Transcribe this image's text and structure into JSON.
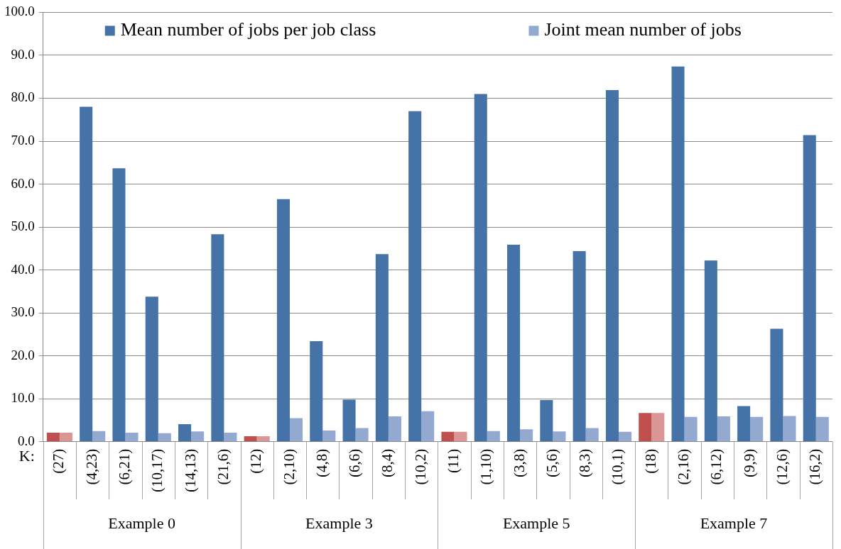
{
  "chart_data": {
    "type": "bar",
    "xlabel": "K:",
    "categories": [
      "(27)",
      "(4,23)",
      "(6,21)",
      "(10,17)",
      "(14,13)",
      "(21,6)",
      "(12)",
      "(2,10)",
      "(4,8)",
      "(6,6)",
      "(8,4)",
      "(10,2)",
      "(11)",
      "(1,10)",
      "(3,8)",
      "(5,6)",
      "(8,3)",
      "(10,1)",
      "(18)",
      "(2,16)",
      "(6,12)",
      "(9,9)",
      "(12,6)",
      "(16,2)"
    ],
    "annotations": [
      "Example 0",
      "Example 3",
      "Example 5",
      "Example 7"
    ],
    "series": [
      {
        "name": "Mean number of jobs per job class",
        "color": "#4572a7",
        "colors": [
          "#c0504d",
          "#4572a7",
          "#4572a7",
          "#4572a7",
          "#4572a7",
          "#4572a7",
          "#c0504d",
          "#4572a7",
          "#4572a7",
          "#4572a7",
          "#4572a7",
          "#4572a7",
          "#c0504d",
          "#4572a7",
          "#4572a7",
          "#4572a7",
          "#4572a7",
          "#4572a7",
          "#c0504d",
          "#4572a7",
          "#4572a7",
          "#4572a7",
          "#4572a7",
          "#4572a7"
        ],
        "values": [
          2.1,
          78.0,
          63.7,
          33.8,
          4.1,
          48.3,
          1.3,
          56.5,
          23.4,
          9.8,
          43.7,
          77.0,
          2.3,
          81.0,
          45.9,
          9.7,
          44.4,
          81.9,
          6.7,
          87.4,
          42.2,
          8.3,
          26.3,
          71.4
        ]
      },
      {
        "name": "Joint mean number of jobs",
        "color": "#93a9cf",
        "colors": [
          "#d99694",
          "#93a9cf",
          "#93a9cf",
          "#93a9cf",
          "#93a9cf",
          "#93a9cf",
          "#d99694",
          "#93a9cf",
          "#93a9cf",
          "#93a9cf",
          "#93a9cf",
          "#93a9cf",
          "#d99694",
          "#93a9cf",
          "#93a9cf",
          "#93a9cf",
          "#93a9cf",
          "#93a9cf",
          "#d99694",
          "#93a9cf",
          "#93a9cf",
          "#93a9cf",
          "#93a9cf",
          "#93a9cf"
        ],
        "values": [
          2.1,
          2.5,
          2.1,
          2.0,
          2.4,
          2.1,
          1.3,
          5.5,
          2.6,
          3.2,
          5.9,
          7.1,
          2.3,
          2.5,
          2.9,
          2.4,
          3.2,
          2.3,
          6.7,
          5.8,
          5.9,
          5.8,
          6.0,
          5.8
        ]
      }
    ],
    "ylim": [
      0,
      100
    ],
    "yticks": [
      {
        "value": 0,
        "label": "0.0"
      },
      {
        "value": 10,
        "label": "10.0"
      },
      {
        "value": 20,
        "label": "20.0"
      },
      {
        "value": 30,
        "label": "30.0"
      },
      {
        "value": 40,
        "label": "40.0"
      },
      {
        "value": 50,
        "label": "50.0"
      },
      {
        "value": 60,
        "label": "60.0"
      },
      {
        "value": 70,
        "label": "70.0"
      },
      {
        "value": 80,
        "label": "80.0"
      },
      {
        "value": 90,
        "label": "90.0"
      },
      {
        "value": 100,
        "label": "100.0"
      }
    ],
    "grid": "y",
    "legend": "top"
  }
}
